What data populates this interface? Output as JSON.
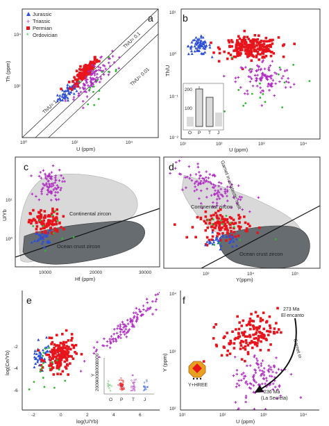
{
  "colors": {
    "Jurassic": "#2c4fd8",
    "Triassic": "#b02ac4",
    "Permian": "#e8141c",
    "Ordovician": "#2eb82e",
    "continental": "#d9d9d9",
    "ocean": "#666c70"
  },
  "legend": [
    "Jurassic",
    "Triassic",
    "Permian",
    "Ordovician"
  ],
  "chart_data": [
    {
      "panel": "a",
      "type": "scatter",
      "xlabel": "U (ppm)",
      "ylabel": "Th (ppm)",
      "xscale": "log",
      "yscale": "log",
      "xlim": [
        1,
        100000
      ],
      "ylim": [
        1,
        100000
      ],
      "xticks": [
        "10⁰",
        "10²",
        "10⁴"
      ],
      "yticks": [
        "10²",
        "10⁴"
      ],
      "reference_lines": [
        {
          "label": "Th/U= 1",
          "ratio": 1
        },
        {
          "label": "Th/U= 0.1",
          "ratio": 0.1
        },
        {
          "label": "Th/U= 0.01",
          "ratio": 0.01
        }
      ],
      "clusters": [
        {
          "series": "Jurassic",
          "n": 55,
          "logx": [
            1.75,
            0.22
          ],
          "logy": [
            1.85,
            0.22
          ],
          "corr": 0.8
        },
        {
          "series": "Permian",
          "n": 130,
          "logx": [
            2.3,
            0.25
          ],
          "logy": [
            2.55,
            0.28
          ],
          "corr": 0.85
        },
        {
          "series": "Triassic",
          "n": 90,
          "logx": [
            2.6,
            0.35
          ],
          "logy": [
            2.3,
            0.4
          ],
          "corr": 0.8
        },
        {
          "series": "Ordovician",
          "n": 15,
          "logx": [
            2.8,
            0.4
          ],
          "logy": [
            2.2,
            0.4
          ],
          "corr": 0.6
        }
      ]
    },
    {
      "panel": "b",
      "type": "scatter",
      "xlabel": "U (ppm)",
      "ylabel": "Th/U",
      "xscale": "log",
      "yscale": "log",
      "xlim": [
        10,
        10000
      ],
      "ylim": [
        0.01,
        10
      ],
      "xticks": [
        "10¹",
        "10²",
        "10³",
        "10⁴"
      ],
      "yticks": [
        "10⁻²",
        "10⁻¹",
        "10⁰",
        "10¹"
      ],
      "clusters": [
        {
          "series": "Jurassic",
          "n": 70,
          "logx": [
            1.4,
            0.12
          ],
          "logy": [
            0.15,
            0.1
          ],
          "corr": 0.0
        },
        {
          "series": "Permian",
          "n": 230,
          "logx": [
            2.5,
            0.3
          ],
          "logy": [
            0.1,
            0.12
          ],
          "corr": 0.0
        },
        {
          "series": "Triassic",
          "n": 100,
          "logx": [
            2.8,
            0.3
          ],
          "logy": [
            -0.6,
            0.22
          ],
          "corr": 0.0
        },
        {
          "series": "Ordovician",
          "n": 18,
          "logx": [
            2.7,
            0.45
          ],
          "logy": [
            -0.7,
            0.4
          ],
          "corr": 0.0
        }
      ],
      "inset": {
        "type": "box",
        "categories": [
          "O",
          "P",
          "T",
          "J"
        ],
        "yticks": [
          "100",
          "200"
        ],
        "ylim": [
          0,
          200
        ],
        "boxes": [
          [
            5,
            35,
            55,
            5
          ],
          [
            95,
            160,
            180,
            40
          ],
          [
            10,
            50,
            90,
            10
          ],
          [
            5,
            60,
            75,
            5
          ]
        ]
      }
    },
    {
      "panel": "c",
      "type": "scatter",
      "xlabel": "Hf (ppm)",
      "ylabel": "U/Yb",
      "xscale": "linear",
      "yscale": "log",
      "xlim": [
        5000,
        33000
      ],
      "ylim": [
        0.1,
        100
      ],
      "xticks": [
        "10000",
        "20000",
        "30000"
      ],
      "yticks": [
        "10⁰",
        "10¹"
      ],
      "fields": [
        "Continental zircon",
        "Ocean crust zircon"
      ],
      "clusters": [
        {
          "series": "Triassic",
          "n": 80,
          "x": [
            11500,
            1300
          ],
          "logy": [
            1.25,
            0.22
          ],
          "corr": 0.0
        },
        {
          "series": "Permian",
          "n": 110,
          "x": [
            11000,
            1500
          ],
          "logy": [
            0.2,
            0.18
          ],
          "corr": 0.0
        },
        {
          "series": "Jurassic",
          "n": 30,
          "x": [
            10200,
            900
          ],
          "logy": [
            -0.2,
            0.1
          ],
          "corr": 0.0
        },
        {
          "series": "Ordovician",
          "n": 10,
          "x": [
            12000,
            2000
          ],
          "logy": [
            0.1,
            0.3
          ],
          "corr": 0.0
        }
      ]
    },
    {
      "panel": "d",
      "type": "scatter",
      "xlabel": "Y(ppm)",
      "ylabel": "",
      "xscale": "log",
      "yscale": "log",
      "xlim": [
        100,
        100000
      ],
      "ylim": [
        0.1,
        100
      ],
      "xticks": [
        "10³",
        "10⁴",
        "10⁵"
      ],
      "fields": [
        "Continental zircon",
        "Ocean crust zircon"
      ],
      "annotation": "Garnet in anatectic melt",
      "clusters": [
        {
          "series": "Triassic",
          "n": 110,
          "logx": [
            2.9,
            0.35
          ],
          "logy": [
            1.2,
            0.3
          ],
          "corr": -0.7
        },
        {
          "series": "Permian",
          "n": 120,
          "logx": [
            3.15,
            0.25
          ],
          "logy": [
            0.15,
            0.18
          ],
          "corr": 0.0
        },
        {
          "series": "Jurassic",
          "n": 35,
          "logx": [
            3.1,
            0.15
          ],
          "logy": [
            -0.25,
            0.1
          ],
          "corr": 0.0
        },
        {
          "series": "Ordovician",
          "n": 12,
          "logx": [
            3.2,
            0.35
          ],
          "logy": [
            0.0,
            0.3
          ],
          "corr": 0.0
        }
      ]
    },
    {
      "panel": "e",
      "type": "scatter",
      "xlabel": "log(U/Yb)",
      "ylabel": "log(Ce/Yb)",
      "xscale": "linear",
      "yscale": "linear",
      "xlim": [
        -3,
        7.5
      ],
      "ylim": [
        -6.2,
        0.2
      ],
      "xticks": [
        "-2",
        "0",
        "2",
        "4",
        "6"
      ],
      "yticks": [
        "-6",
        "-4",
        "-2"
      ],
      "clusters": [
        {
          "series": "Jurassic",
          "n": 45,
          "x": [
            -1.6,
            0.4
          ],
          "y": [
            -3.3,
            0.35
          ],
          "corr": 0.3
        },
        {
          "series": "Permian",
          "n": 160,
          "x": [
            -0.1,
            0.55
          ],
          "y": [
            -3.3,
            0.45
          ],
          "corr": 0.2
        },
        {
          "series": "Triassic",
          "n": 110,
          "x": [
            4.8,
            1.3
          ],
          "y": [
            -1.8,
            0.8
          ],
          "corr": 0.95
        },
        {
          "series": "Ordovician",
          "n": 18,
          "x": [
            -1.3,
            0.6
          ],
          "y": [
            -4.3,
            0.8
          ],
          "corr": 0.0
        }
      ],
      "inset": {
        "type": "strip",
        "categories": [
          "O",
          "P",
          "T",
          "J"
        ],
        "ylabel": "Y",
        "yticks": [
          "2000",
          "4000",
          "6000",
          "8000"
        ],
        "ylim": [
          0,
          8000
        ]
      }
    },
    {
      "panel": "f",
      "type": "scatter",
      "xlabel": "U (ppm)",
      "ylabel": "Y (ppm)",
      "xscale": "log",
      "yscale": "log",
      "xlim": [
        10,
        10000
      ],
      "ylim": [
        100,
        10000
      ],
      "xticks": [
        "10¹",
        "10²",
        "10³",
        "10⁴"
      ],
      "yticks": [
        "10²",
        "10³",
        "10⁴"
      ],
      "annotations": [
        "273 Ma",
        "El encanto",
        "Garnet in",
        "236 Ma",
        "(La Secreta)",
        "Y+HREE"
      ],
      "clusters": [
        {
          "series": "Permian",
          "n": 140,
          "logx": [
            2.5,
            0.3
          ],
          "logy": [
            3.25,
            0.18
          ],
          "corr": 0.3
        },
        {
          "series": "Triassic",
          "n": 110,
          "logx": [
            2.75,
            0.3
          ],
          "logy": [
            2.55,
            0.22
          ],
          "corr": 0.2
        }
      ]
    }
  ]
}
